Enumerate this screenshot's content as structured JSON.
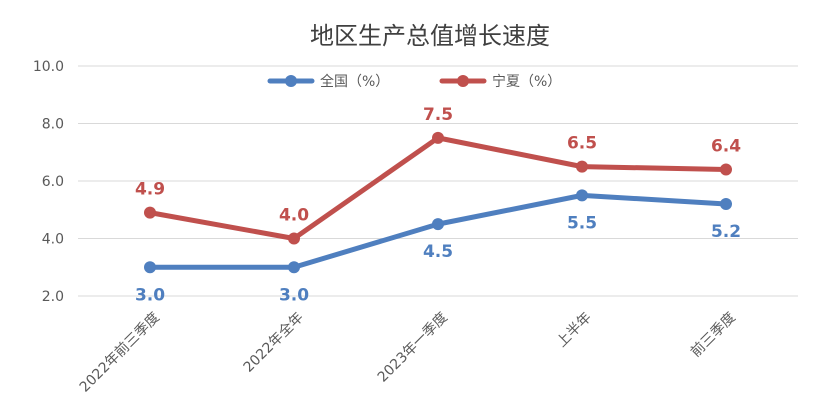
{
  "chart_data": {
    "type": "line",
    "title": "地区生产总值增长速度",
    "categories": [
      "2022年前三季度",
      "2022年全年",
      "2023年一季度",
      "上半年",
      "前三季度"
    ],
    "ylim": [
      2.0,
      10.0
    ],
    "yticks": [
      "2.0",
      "4.0",
      "6.0",
      "8.0",
      "10.0"
    ],
    "grid": true,
    "legend_position": "top",
    "series": [
      {
        "name": "全国（%）",
        "color": "#4f7fbf",
        "values": [
          3.0,
          3.0,
          4.5,
          5.5,
          5.2
        ],
        "labels": [
          "3.0",
          "3.0",
          "4.5",
          "5.5",
          "5.2"
        ],
        "label_position": "below"
      },
      {
        "name": "宁夏（%）",
        "color": "#c0504d",
        "values": [
          4.9,
          4.0,
          7.5,
          6.5,
          6.4
        ],
        "labels": [
          "4.9",
          "4.0",
          "7.5",
          "6.5",
          "6.4"
        ],
        "label_position": "above"
      }
    ]
  }
}
